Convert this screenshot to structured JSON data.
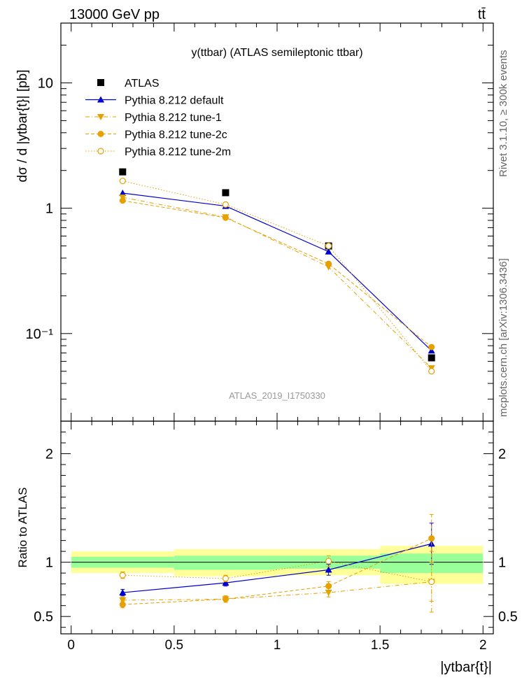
{
  "header": {
    "energy_label": "13000 GeV pp",
    "process_label": "tt̄"
  },
  "side_labels": {
    "rivet": "Rivet 3.1.10, ≥ 300k events",
    "source": "mcplots.cern.ch [arXiv:1306.3436]"
  },
  "watermark": "ATLAS_2019_I1750330",
  "chart_data": [
    {
      "type": "scatter",
      "title": "y(ttbar) (ATLAS semileptonic ttbar)",
      "ylabel": "dσ / d |ytbar{t}| [pb]",
      "yscale": "log",
      "ylim": [
        0.02,
        30
      ],
      "y_tick_labels": [
        "10⁻¹",
        "1",
        "10"
      ],
      "x": [
        0.25,
        0.75,
        1.25,
        1.75
      ],
      "x_bins": [
        [
          0,
          0.5
        ],
        [
          0.5,
          1.0
        ],
        [
          1.0,
          1.5
        ],
        [
          1.5,
          2.0
        ]
      ],
      "series": [
        {
          "name": "ATLAS",
          "values": [
            1.95,
            1.33,
            0.5,
            0.064
          ],
          "color": "#000000",
          "marker": "square",
          "line": "none"
        },
        {
          "name": "Pythia 8.212 default",
          "values": [
            1.32,
            1.04,
            0.45,
            0.073
          ],
          "color": "#0000cc",
          "marker": "triangle-up",
          "line": "solid"
        },
        {
          "name": "Pythia 8.212 tune-1",
          "values": [
            1.22,
            0.85,
            0.34,
            0.053
          ],
          "color": "#e6a100",
          "marker": "triangle-down",
          "line": "dashdot"
        },
        {
          "name": "Pythia 8.212 tune-2c",
          "values": [
            1.15,
            0.84,
            0.36,
            0.078
          ],
          "color": "#e6a100",
          "marker": "circle",
          "line": "dashed"
        },
        {
          "name": "Pythia 8.212 tune-2m",
          "values": [
            1.65,
            1.07,
            0.5,
            0.05
          ],
          "color": "#e6a100",
          "marker": "circle-open",
          "line": "dotted"
        }
      ]
    },
    {
      "type": "scatter",
      "ylabel": "Ratio to ATLAS",
      "xlabel": "|ytbar{t}|",
      "xlim": [
        -0.05,
        2.05
      ],
      "ylim": [
        0.34,
        2.3
      ],
      "x_ticks": [
        "0",
        "0.5",
        "1",
        "1.5",
        "2"
      ],
      "y_ticks": [
        "0.5",
        "1",
        "2"
      ],
      "x": [
        0.25,
        0.75,
        1.25,
        1.75
      ],
      "bands": {
        "inner": [
          [
            0.95,
            1.05
          ],
          [
            0.93,
            1.06
          ],
          [
            0.94,
            1.06
          ],
          [
            0.9,
            1.08
          ]
        ],
        "outer": [
          [
            0.9,
            1.1
          ],
          [
            0.87,
            1.12
          ],
          [
            0.88,
            1.12
          ],
          [
            0.8,
            1.15
          ]
        ]
      },
      "series": [
        {
          "name": "Pythia 8.212 default",
          "values": [
            0.72,
            0.81,
            0.93,
            1.17
          ],
          "errors": [
            0.03,
            0.03,
            0.05,
            0.19
          ]
        },
        {
          "name": "Pythia 8.212 tune-1",
          "values": [
            0.65,
            0.66,
            0.72,
            0.82
          ],
          "errors": [
            0.03,
            0.03,
            0.04,
            0.28
          ]
        },
        {
          "name": "Pythia 8.212 tune-2c",
          "values": [
            0.61,
            0.66,
            0.78,
            1.22
          ],
          "errors": [
            0.03,
            0.03,
            0.04,
            0.22
          ]
        },
        {
          "name": "Pythia 8.212 tune-2m",
          "values": [
            0.88,
            0.85,
            1.01,
            0.82
          ],
          "errors": [
            0.03,
            0.03,
            0.05,
            0.18
          ]
        }
      ]
    }
  ]
}
